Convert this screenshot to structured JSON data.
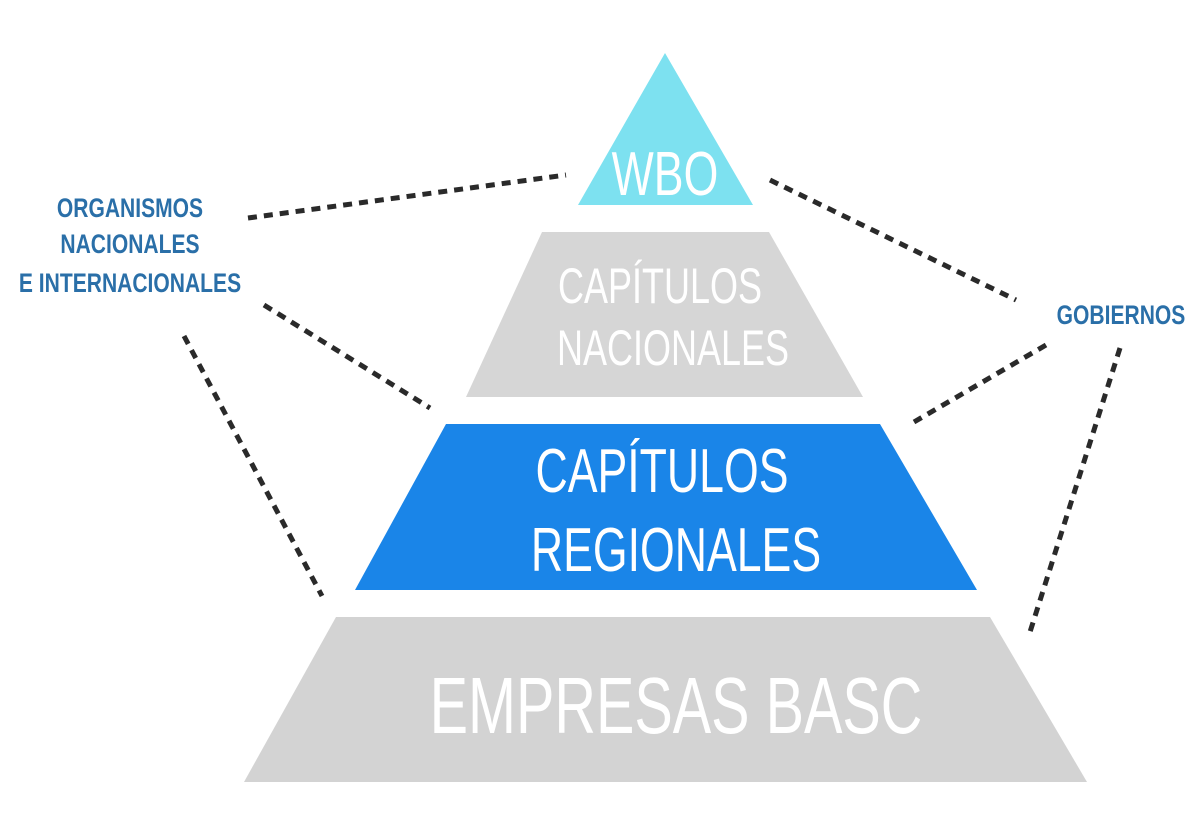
{
  "pyramid": {
    "tiers": [
      {
        "id": "wbo",
        "lines": [
          "WBO"
        ],
        "color": "#7de1f0",
        "text_color": "#ffffff"
      },
      {
        "id": "capitulos-nacionales",
        "lines": [
          "CAPÍTULOS",
          "NACIONALES"
        ],
        "color": "#d6d6d6",
        "text_color": "#ffffff"
      },
      {
        "id": "capitulos-regionales",
        "lines": [
          "CAPÍTULOS",
          "REGIONALES"
        ],
        "color": "#1a85e8",
        "text_color": "#ffffff"
      },
      {
        "id": "empresas-basc",
        "lines": [
          "EMPRESAS BASC"
        ],
        "color": "#d3d3d3",
        "text_color": "#ffffff"
      }
    ]
  },
  "labels": {
    "left": {
      "lines": [
        "ORGANISMOS",
        "NACIONALES",
        "E INTERNACIONALES"
      ],
      "color": "#2a6fa8"
    },
    "right": {
      "lines": [
        "GOBIERNOS"
      ],
      "color": "#2a6fa8"
    }
  },
  "connector_color": "#2a2a2a"
}
